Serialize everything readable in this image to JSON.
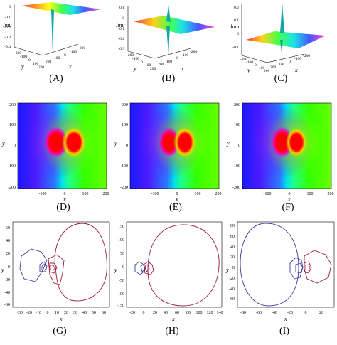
{
  "panels": {
    "A": {
      "caption": "(A)",
      "zlabel": "Imu",
      "zticks": [
        "0",
        "-0.1",
        "-0.2",
        "-0.3",
        "-0.4"
      ],
      "ylabel": "y",
      "xlabel": "x",
      "yticks": [
        "-200",
        "-100",
        "0",
        "100",
        "200"
      ],
      "xticks": [
        "200",
        "100",
        "0",
        "-100",
        "-200"
      ]
    },
    "B": {
      "caption": "(B)",
      "zlabel": "Imu",
      "zticks": [
        "0.1",
        "0",
        "-0.1",
        "-0.2",
        "-0.3"
      ],
      "ylabel": "y",
      "xlabel": "x",
      "yticks": [
        "-200",
        "-100",
        "0",
        "100",
        "200"
      ],
      "xticks": [
        "200",
        "100",
        "0",
        "-100",
        "-200"
      ]
    },
    "C": {
      "caption": "(C)",
      "zlabel": "Imu",
      "zticks": [
        "0.2",
        "0.1",
        "0",
        "-0.1"
      ],
      "ylabel": "y",
      "xlabel": "x",
      "yticks": [
        "-200",
        "-100",
        "0",
        "100",
        "200"
      ],
      "xticks": [
        "200",
        "100",
        "0",
        "-100",
        "-200"
      ]
    },
    "D": {
      "caption": "(D)",
      "xlabel": "x",
      "ylabel": "y",
      "xticks": [
        "-100",
        "0",
        "100",
        "200"
      ],
      "yticks": [
        "200",
        "100",
        "0",
        "-100",
        "-200"
      ]
    },
    "E": {
      "caption": "(E)",
      "xlabel": "x",
      "ylabel": "y",
      "xticks": [
        "-100",
        "0",
        "100",
        "200"
      ],
      "yticks": [
        "200",
        "100",
        "0",
        "-100",
        "-200"
      ]
    },
    "F": {
      "caption": "(F)",
      "xlabel": "x",
      "ylabel": "y",
      "xticks": [
        "-100",
        "0",
        "100",
        "200"
      ],
      "yticks": [
        "200",
        "100",
        "0",
        "-100",
        "-200"
      ]
    },
    "G": {
      "caption": "(G)",
      "xlabel": "x",
      "ylabel": "y",
      "xticks": [
        "-30",
        "-20",
        "-10",
        "0",
        "10",
        "20",
        "30",
        "40",
        "50",
        "60"
      ],
      "yticks": [
        "60",
        "40",
        "20",
        "0",
        "-20",
        "-40",
        "-60"
      ]
    },
    "H": {
      "caption": "(H)",
      "xlabel": "x",
      "ylabel": "y",
      "xticks": [
        "-20",
        "0",
        "20",
        "40",
        "60",
        "80",
        "100",
        "120",
        "140"
      ],
      "yticks": [
        "150",
        "100",
        "50",
        "0",
        "-50",
        "-100",
        "-150"
      ]
    },
    "I": {
      "caption": "(I)",
      "xlabel": "x",
      "ylabel": "y",
      "xticks": [
        "-80",
        "-60",
        "-40",
        "-20",
        "0",
        "20"
      ],
      "yticks": [
        "80",
        "60",
        "40",
        "20",
        "0",
        "-20",
        "-40",
        "-60"
      ]
    }
  },
  "colors": {
    "contour_red": "#9b1b3a",
    "contour_blue": "#3a3a9e",
    "density_blue": "#1a1aff",
    "density_cyan": "#00e5e5",
    "density_green": "#33ff00",
    "density_red": "#ff0000",
    "density_magenta": "#cc33cc"
  }
}
